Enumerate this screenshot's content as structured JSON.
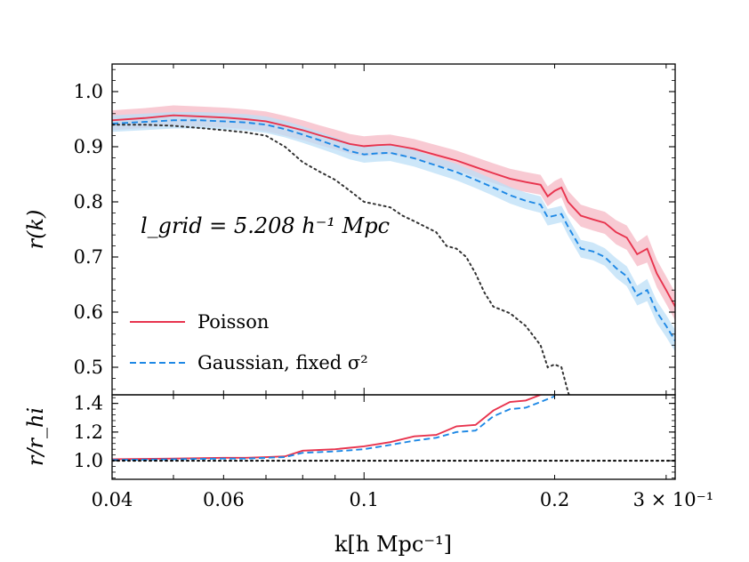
{
  "chart_data": [
    {
      "type": "line",
      "panel": "main",
      "xlabel": "k[h Mpc⁻¹]",
      "ylabel": "r(k)",
      "xscale": "log",
      "xlim": [
        0.04,
        0.31
      ],
      "ylim": [
        0.45,
        1.05
      ],
      "yticks": [
        0.5,
        0.6,
        0.7,
        0.8,
        0.9,
        1.0
      ],
      "ytick_labels": [
        "0.5",
        "0.6",
        "0.7",
        "0.8",
        "0.9",
        "1.0"
      ],
      "annotation": "l_grid = 5.208 h⁻¹ Mpc",
      "legend_position": "lower-left",
      "grid": false,
      "series": [
        {
          "name": "Poisson",
          "style": "solid",
          "color": "#e8344e",
          "band": true,
          "band_color": "#f5b8c4",
          "x": [
            0.04,
            0.045,
            0.05,
            0.055,
            0.06,
            0.065,
            0.07,
            0.075,
            0.08,
            0.085,
            0.09,
            0.095,
            0.1,
            0.105,
            0.11,
            0.115,
            0.12,
            0.13,
            0.14,
            0.15,
            0.16,
            0.17,
            0.18,
            0.19,
            0.195,
            0.2,
            0.205,
            0.21,
            0.22,
            0.23,
            0.24,
            0.25,
            0.26,
            0.27,
            0.28,
            0.29,
            0.3,
            0.31
          ],
          "y": [
            0.948,
            0.952,
            0.957,
            0.955,
            0.953,
            0.95,
            0.946,
            0.938,
            0.93,
            0.921,
            0.913,
            0.905,
            0.901,
            0.903,
            0.904,
            0.9,
            0.896,
            0.885,
            0.875,
            0.863,
            0.852,
            0.842,
            0.836,
            0.831,
            0.81,
            0.82,
            0.826,
            0.8,
            0.775,
            0.768,
            0.762,
            0.745,
            0.735,
            0.705,
            0.715,
            0.67,
            0.64,
            0.61
          ],
          "band_halfwidth": [
            0.018,
            0.018,
            0.018,
            0.018,
            0.018,
            0.018,
            0.018,
            0.018,
            0.018,
            0.018,
            0.018,
            0.018,
            0.018,
            0.018,
            0.018,
            0.018,
            0.018,
            0.018,
            0.018,
            0.018,
            0.018,
            0.018,
            0.018,
            0.018,
            0.018,
            0.018,
            0.018,
            0.02,
            0.02,
            0.02,
            0.02,
            0.022,
            0.022,
            0.022,
            0.025,
            0.025,
            0.025,
            0.025
          ]
        },
        {
          "name": "Gaussian, fixed σ²",
          "style": "dashed",
          "color": "#1e88e5",
          "band": true,
          "band_color": "#bcdff7",
          "x": [
            0.04,
            0.045,
            0.05,
            0.055,
            0.06,
            0.065,
            0.07,
            0.075,
            0.08,
            0.085,
            0.09,
            0.095,
            0.1,
            0.105,
            0.11,
            0.115,
            0.12,
            0.13,
            0.14,
            0.15,
            0.16,
            0.17,
            0.18,
            0.19,
            0.195,
            0.2,
            0.205,
            0.21,
            0.22,
            0.23,
            0.24,
            0.25,
            0.26,
            0.27,
            0.28,
            0.29,
            0.3,
            0.31
          ],
          "y": [
            0.942,
            0.945,
            0.948,
            0.948,
            0.946,
            0.944,
            0.94,
            0.932,
            0.922,
            0.912,
            0.902,
            0.892,
            0.886,
            0.888,
            0.889,
            0.884,
            0.879,
            0.866,
            0.854,
            0.84,
            0.826,
            0.812,
            0.802,
            0.795,
            0.772,
            0.775,
            0.778,
            0.755,
            0.715,
            0.71,
            0.7,
            0.68,
            0.665,
            0.63,
            0.64,
            0.6,
            0.575,
            0.548
          ],
          "band_halfwidth": [
            0.015,
            0.015,
            0.015,
            0.015,
            0.015,
            0.015,
            0.015,
            0.015,
            0.015,
            0.015,
            0.015,
            0.015,
            0.015,
            0.015,
            0.015,
            0.015,
            0.015,
            0.015,
            0.015,
            0.015,
            0.015,
            0.015,
            0.015,
            0.015,
            0.015,
            0.015,
            0.015,
            0.016,
            0.016,
            0.016,
            0.016,
            0.018,
            0.018,
            0.018,
            0.02,
            0.02,
            0.02,
            0.02
          ]
        },
        {
          "name": "",
          "style": "dotted",
          "color": "#333333",
          "band": false,
          "x": [
            0.04,
            0.045,
            0.05,
            0.055,
            0.06,
            0.065,
            0.07,
            0.075,
            0.08,
            0.085,
            0.09,
            0.095,
            0.1,
            0.105,
            0.11,
            0.115,
            0.12,
            0.13,
            0.135,
            0.14,
            0.145,
            0.15,
            0.155,
            0.16,
            0.17,
            0.18,
            0.19,
            0.195,
            0.2,
            0.205,
            0.21,
            0.215
          ],
          "y": [
            0.94,
            0.94,
            0.938,
            0.934,
            0.93,
            0.926,
            0.92,
            0.9,
            0.872,
            0.855,
            0.84,
            0.82,
            0.8,
            0.795,
            0.79,
            0.775,
            0.765,
            0.745,
            0.72,
            0.715,
            0.7,
            0.67,
            0.635,
            0.61,
            0.598,
            0.575,
            0.54,
            0.5,
            0.505,
            0.5,
            0.455,
            0.42
          ]
        }
      ]
    },
    {
      "type": "line",
      "panel": "ratio",
      "xlabel": "k[h Mpc⁻¹]",
      "ylabel": "r/r_hi",
      "xscale": "log",
      "xlim": [
        0.04,
        0.31
      ],
      "ylim": [
        0.87,
        1.46
      ],
      "yticks": [
        1.0,
        1.2,
        1.4
      ],
      "ytick_labels": [
        "1.0",
        "1.2",
        "1.4"
      ],
      "xticks": [
        0.04,
        0.06,
        0.1,
        0.2,
        0.3
      ],
      "xtick_labels": [
        "0.04",
        "0.06",
        "0.1",
        "0.2",
        "3 × 10⁻¹"
      ],
      "grid": false,
      "series": [
        {
          "name": "Poisson",
          "style": "solid",
          "color": "#e8344e",
          "x": [
            0.04,
            0.05,
            0.06,
            0.065,
            0.07,
            0.075,
            0.08,
            0.085,
            0.09,
            0.1,
            0.11,
            0.12,
            0.13,
            0.14,
            0.15,
            0.16,
            0.17,
            0.18,
            0.19,
            0.2
          ],
          "y": [
            1.01,
            1.015,
            1.02,
            1.02,
            1.025,
            1.03,
            1.07,
            1.075,
            1.08,
            1.1,
            1.13,
            1.17,
            1.18,
            1.24,
            1.25,
            1.35,
            1.41,
            1.42,
            1.46,
            1.5
          ]
        },
        {
          "name": "Gaussian, fixed σ²",
          "style": "dashed",
          "color": "#1e88e5",
          "x": [
            0.04,
            0.05,
            0.06,
            0.065,
            0.07,
            0.075,
            0.08,
            0.085,
            0.09,
            0.1,
            0.11,
            0.12,
            0.13,
            0.14,
            0.15,
            0.16,
            0.17,
            0.18,
            0.19,
            0.2
          ],
          "y": [
            1.005,
            1.01,
            1.015,
            1.015,
            1.02,
            1.025,
            1.055,
            1.06,
            1.065,
            1.08,
            1.11,
            1.14,
            1.16,
            1.2,
            1.21,
            1.31,
            1.36,
            1.37,
            1.41,
            1.45
          ]
        },
        {
          "name": "",
          "style": "dotted",
          "color": "#000000",
          "x": [
            0.04,
            0.31
          ],
          "y": [
            1.0,
            1.0
          ]
        }
      ]
    }
  ]
}
